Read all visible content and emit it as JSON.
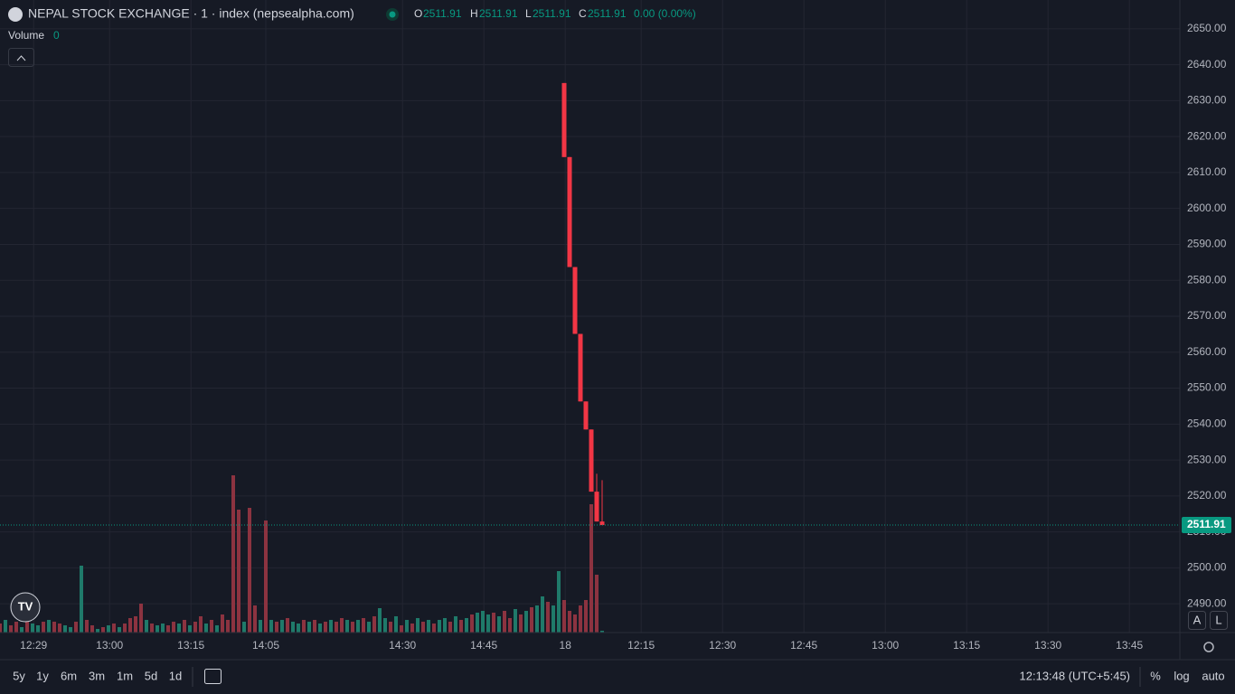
{
  "header": {
    "title": "NEPAL STOCK EXCHANGE · 1 · index (nepsealpha.com)",
    "o_label": "O",
    "o": "2511.91",
    "h_label": "H",
    "h": "2511.91",
    "l_label": "L",
    "l": "2511.91",
    "c_label": "C",
    "c": "2511.91",
    "change": "0.00 (0.00%)",
    "volume_label": "Volume",
    "volume": "0"
  },
  "toolbar": {
    "ranges": [
      "5y",
      "1y",
      "6m",
      "3m",
      "1m",
      "5d",
      "1d"
    ],
    "clock": "12:13:48 (UTC+5:45)",
    "percent": "%",
    "log": "log",
    "auto": "auto",
    "a": "A",
    "l": "L"
  },
  "chart_data": {
    "type": "candlestick",
    "x": [
      104,
      105,
      106,
      107,
      108,
      109,
      110,
      111
    ],
    "open": [
      2634.9,
      2614.3,
      2583.7,
      2565.1,
      2546.3,
      2538.5,
      2521.2,
      2512.9
    ],
    "high": [
      2634.9,
      2614.3,
      2583.7,
      2565.1,
      2546.3,
      2538.5,
      2526.2,
      2524.4
    ],
    "low": [
      2614.3,
      2583.7,
      2565.1,
      2546.3,
      2538.5,
      2521.2,
      2512.9,
      2511.9
    ],
    "close": [
      2614.3,
      2583.7,
      2565.1,
      2546.3,
      2538.5,
      2521.2,
      2512.9,
      2511.91
    ],
    "up_color": "#089981",
    "down_color": "#f23645",
    "last_price": 2511.91,
    "xlim": [
      0,
      217.5
    ],
    "xticks": [
      {
        "value": 6.2,
        "label": "12:29"
      },
      {
        "value": 20.2,
        "label": "13:00"
      },
      {
        "value": 35.2,
        "label": "13:15"
      },
      {
        "value": 49,
        "label": "14:05"
      },
      {
        "value": 74.2,
        "label": "14:30"
      },
      {
        "value": 89.2,
        "label": "14:45"
      },
      {
        "value": 104.2,
        "label": "18"
      },
      {
        "value": 118.2,
        "label": "12:15"
      },
      {
        "value": 133.2,
        "label": "12:30"
      },
      {
        "value": 148.2,
        "label": "12:45"
      },
      {
        "value": 163.2,
        "label": "13:00"
      },
      {
        "value": 178.2,
        "label": "13:15"
      },
      {
        "value": 193.2,
        "label": "13:30"
      },
      {
        "value": 208.2,
        "label": "13:45"
      }
    ],
    "ylim": [
      2482,
      2658
    ],
    "yticks": [
      {
        "value": 2490,
        "label": "2490.00"
      },
      {
        "value": 2500,
        "label": "2500.00"
      },
      {
        "value": 2510,
        "label": "2510.00"
      },
      {
        "value": 2520,
        "label": "2520.00"
      },
      {
        "value": 2530,
        "label": "2530.00"
      },
      {
        "value": 2540,
        "label": "2540.00"
      },
      {
        "value": 2550,
        "label": "2550.00"
      },
      {
        "value": 2560,
        "label": "2560.00"
      },
      {
        "value": 2570,
        "label": "2570.00"
      },
      {
        "value": 2580,
        "label": "2580.00"
      },
      {
        "value": 2590,
        "label": "2590.00"
      },
      {
        "value": 2600,
        "label": "2600.00"
      },
      {
        "value": 2610,
        "label": "2610.00"
      },
      {
        "value": 2620,
        "label": "2620.00"
      },
      {
        "value": 2630,
        "label": "2630.00"
      },
      {
        "value": 2640,
        "label": "2640.00"
      },
      {
        "value": 2650,
        "label": "2650.00"
      }
    ],
    "grid": true,
    "volume": {
      "lim": [
        0,
        200
      ],
      "up_color": "#1f7a6a",
      "down_color": "#8c3340",
      "values": [
        10,
        14,
        8,
        12,
        6,
        14,
        10,
        8,
        12,
        14,
        12,
        10,
        8,
        6,
        12,
        74,
        14,
        8,
        4,
        6,
        8,
        10,
        6,
        10,
        16,
        18,
        32,
        14,
        10,
        8,
        10,
        8,
        12,
        10,
        14,
        8,
        12,
        18,
        10,
        14,
        8,
        20,
        14,
        174,
        136,
        12,
        138,
        30,
        14,
        124,
        14,
        12,
        14,
        16,
        12,
        10,
        14,
        12,
        14,
        10,
        12,
        14,
        12,
        16,
        14,
        12,
        14,
        16,
        12,
        18,
        27,
        16,
        12,
        18,
        8,
        14,
        10,
        16,
        12,
        14,
        10,
        14,
        16,
        12,
        18,
        14,
        16,
        20,
        22,
        24,
        20,
        22,
        18,
        24,
        16,
        26,
        20,
        24,
        28,
        30,
        40,
        34,
        30,
        68,
        36,
        24,
        20,
        30,
        36,
        142,
        64,
        2
      ],
      "up": [
        0,
        1,
        0,
        0,
        1,
        0,
        1,
        1,
        0,
        1,
        0,
        0,
        1,
        1,
        0,
        1,
        0,
        0,
        1,
        0,
        1,
        0,
        1,
        0,
        0,
        0,
        0,
        1,
        0,
        1,
        1,
        0,
        0,
        1,
        0,
        1,
        0,
        0,
        1,
        0,
        1,
        0,
        0,
        0,
        0,
        1,
        0,
        0,
        1,
        0,
        1,
        0,
        1,
        0,
        1,
        1,
        0,
        1,
        0,
        1,
        0,
        1,
        0,
        0,
        1,
        0,
        1,
        0,
        1,
        0,
        1,
        1,
        0,
        1,
        0,
        1,
        0,
        1,
        0,
        1,
        0,
        1,
        1,
        0,
        1,
        0,
        1,
        0,
        1,
        1,
        1,
        0,
        1,
        0,
        0,
        1,
        0,
        1,
        0,
        1,
        1,
        0,
        1,
        1,
        0,
        0,
        0,
        0,
        0,
        0,
        0,
        1
      ]
    }
  }
}
